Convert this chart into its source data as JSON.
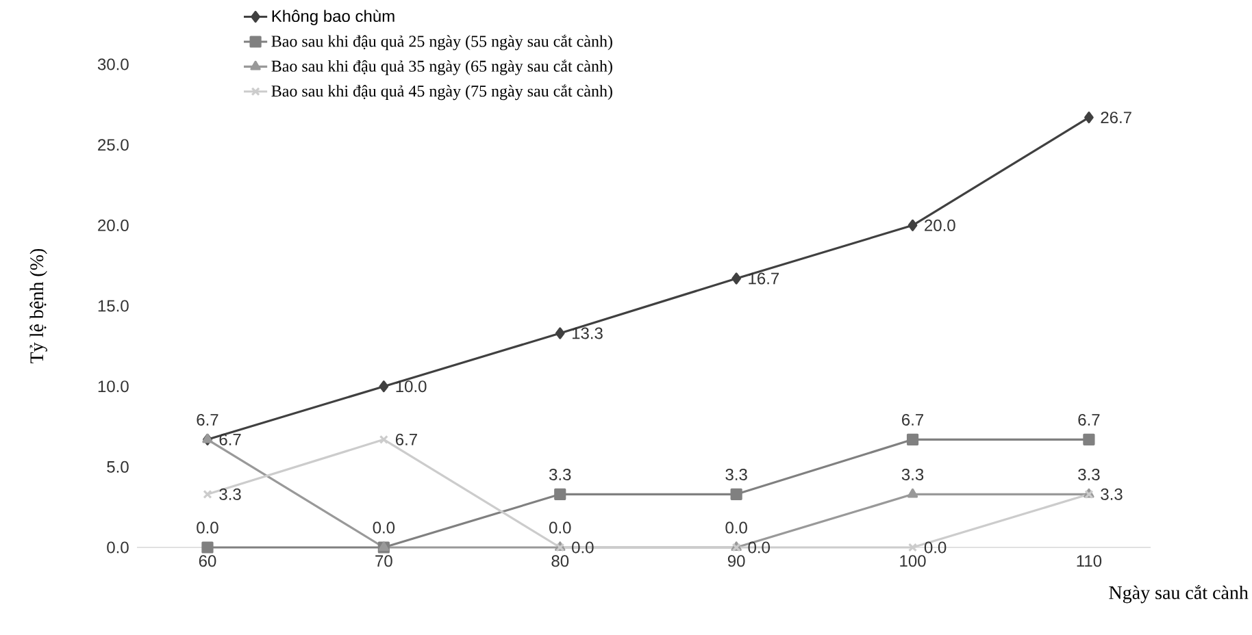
{
  "chart_data": {
    "type": "line",
    "xlabel": "Ngày sau cắt cành",
    "ylabel": "Tỷ lệ bệnh (%)",
    "categories": [
      "60",
      "70",
      "80",
      "90",
      "100",
      "110"
    ],
    "series": [
      {
        "name": "Không bao chùm",
        "color": "#404040",
        "marker": "diamond",
        "values": [
          6.7,
          10.0,
          13.3,
          16.7,
          20.0,
          26.7
        ],
        "value_labels": [
          "6.7",
          "10.0",
          "13.3",
          "16.7",
          "20.0",
          "26.7"
        ]
      },
      {
        "name": "Bao sau khi đậu quả 25 ngày (55 ngày sau cắt cành)",
        "color": "#808080",
        "marker": "square",
        "values": [
          0.0,
          0.0,
          3.3,
          3.3,
          6.7,
          6.7
        ],
        "value_labels": [
          "0.0",
          "0.0",
          "3.3",
          "3.3",
          "6.7",
          "6.7"
        ]
      },
      {
        "name": "Bao sau khi đậu quả 35 ngày (65 ngày sau cắt cành)",
        "color": "#999999",
        "marker": "triangle",
        "values": [
          6.7,
          0.0,
          0.0,
          0.0,
          3.3,
          3.3
        ],
        "value_labels": [
          "6.7",
          null,
          "0.0",
          "0.0",
          "3.3",
          "3.3"
        ]
      },
      {
        "name": "Bao sau khi đậu quả 45 ngày (75 ngày sau cắt cành)",
        "color": "#cccccc",
        "marker": "cross",
        "values": [
          3.3,
          6.7,
          0.0,
          0.0,
          0.0,
          3.3
        ],
        "value_labels": [
          "3.3",
          "6.7",
          "0.0",
          "0.0",
          "0.0",
          "3.3"
        ]
      }
    ],
    "ylim": [
      0,
      30
    ],
    "yticks": [
      {
        "value": 0,
        "label": "0.0"
      },
      {
        "value": 5,
        "label": "5.0"
      },
      {
        "value": 10,
        "label": "10.0"
      },
      {
        "value": 15,
        "label": "15.0"
      },
      {
        "value": 20,
        "label": "20.0"
      },
      {
        "value": 25,
        "label": "25.0"
      },
      {
        "value": 30,
        "label": "30.0"
      }
    ],
    "grid": false,
    "legend": "top left",
    "line_style": "solid"
  }
}
